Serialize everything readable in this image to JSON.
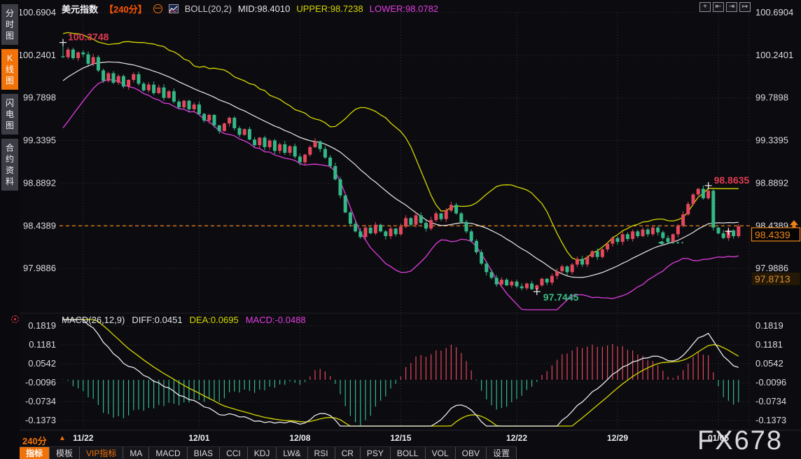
{
  "app": {
    "watermark": "FX678"
  },
  "sidebar": {
    "items": [
      {
        "label": "分时图",
        "active": false
      },
      {
        "label": "K线图",
        "active": true
      },
      {
        "label": "闪电图",
        "active": false
      },
      {
        "label": "合约资料",
        "active": false
      }
    ]
  },
  "header": {
    "symbol": "美元指数",
    "period": "【240分】",
    "indicator": "BOLL(20,2)",
    "mid_label": "MID:98.4010",
    "upper_label": "UPPER:98.7238",
    "lower_label": "LOWER:98.0782"
  },
  "window_controls": [
    {
      "name": "crosshair-icon",
      "glyph": "+"
    },
    {
      "name": "compress-axis-icon",
      "glyph": "⇤"
    },
    {
      "name": "expand-axis-icon",
      "glyph": "⇥"
    },
    {
      "name": "shift-chart-right-icon",
      "glyph": "↦"
    }
  ],
  "macd_header": {
    "title": "MACD(26,12,9)",
    "diff_label": "DIFF:0.0451",
    "dea_label": "DEA:0.0695",
    "macd_label": "MACD:-0.0488"
  },
  "bottom": {
    "period_label": "240分",
    "toolbar": [
      {
        "label": "指标",
        "variant": "active"
      },
      {
        "label": "模板",
        "variant": ""
      },
      {
        "label": "VIP指标",
        "variant": "vip"
      },
      {
        "label": "MA",
        "variant": ""
      },
      {
        "label": "MACD",
        "variant": ""
      },
      {
        "label": "BIAS",
        "variant": ""
      },
      {
        "label": "CCI",
        "variant": ""
      },
      {
        "label": "KDJ",
        "variant": ""
      },
      {
        "label": "LW&",
        "variant": ""
      },
      {
        "label": "RSI",
        "variant": ""
      },
      {
        "label": "CR",
        "variant": ""
      },
      {
        "label": "PSY",
        "variant": ""
      },
      {
        "label": "BOLL",
        "variant": ""
      },
      {
        "label": "VOL",
        "variant": ""
      },
      {
        "label": "OBV",
        "variant": ""
      },
      {
        "label": "设置",
        "variant": ""
      }
    ]
  },
  "chart_data": {
    "type": "candlestick",
    "title": "美元指数 240分 K线 + BOLL(20,2) + MACD(26,12,9)",
    "price_ticks": [
      100.6904,
      100.2401,
      99.7898,
      99.3395,
      98.8892,
      98.4389,
      97.9886
    ],
    "macd_ticks": [
      0.1819,
      0.1181,
      0.0542,
      -0.0096,
      -0.0734,
      -0.1373
    ],
    "x_ticks": [
      {
        "label": "11/22",
        "index": 4
      },
      {
        "label": "12/01",
        "index": 27
      },
      {
        "label": "12/08",
        "index": 47
      },
      {
        "label": "12/15",
        "index": 67
      },
      {
        "label": "12/22",
        "index": 90
      },
      {
        "label": "12/29",
        "index": 110
      },
      {
        "label": "01/05",
        "index": 130
      }
    ],
    "closes": [
      100.22,
      100.3,
      100.21,
      100.27,
      100.25,
      100.15,
      100.22,
      100.08,
      99.97,
      100.05,
      99.95,
      100.02,
      99.91,
      99.98,
      100.04,
      99.94,
      99.87,
      99.93,
      99.84,
      99.9,
      99.79,
      99.86,
      99.75,
      99.69,
      99.76,
      99.67,
      99.72,
      99.62,
      99.55,
      99.61,
      99.5,
      99.44,
      99.52,
      99.58,
      99.47,
      99.4,
      99.46,
      99.35,
      99.29,
      99.37,
      99.27,
      99.34,
      99.23,
      99.3,
      99.21,
      99.28,
      99.17,
      99.11,
      99.19,
      99.27,
      99.33,
      99.25,
      99.16,
      99.07,
      98.93,
      98.76,
      98.58,
      98.46,
      98.38,
      98.32,
      98.42,
      98.36,
      98.45,
      98.38,
      98.33,
      98.41,
      98.35,
      98.43,
      98.52,
      98.45,
      98.55,
      98.47,
      98.41,
      98.5,
      98.57,
      98.51,
      98.6,
      98.66,
      98.57,
      98.48,
      98.38,
      98.28,
      98.16,
      98.04,
      97.95,
      97.89,
      97.82,
      97.87,
      97.81,
      97.85,
      97.8,
      97.78,
      97.83,
      97.77,
      97.81,
      97.88,
      97.84,
      97.91,
      97.96,
      98.01,
      97.95,
      98.03,
      98.09,
      98.03,
      98.11,
      98.17,
      98.11,
      98.19,
      98.25,
      98.31,
      98.27,
      98.35,
      98.3,
      98.38,
      98.33,
      98.4,
      98.35,
      98.42,
      98.37,
      98.31,
      98.27,
      98.35,
      98.44,
      98.56,
      98.67,
      98.77,
      98.83,
      98.73,
      98.81,
      98.42,
      98.36,
      98.31,
      98.39,
      98.33,
      98.4339
    ],
    "extremes": {
      "first_high": {
        "index": 0,
        "value": 100.3748,
        "label": "100.3748"
      },
      "high": {
        "index": 128,
        "value": 98.8635,
        "label": "98.8635"
      },
      "low": {
        "index": 94,
        "value": 97.7445,
        "label": "97.7445"
      },
      "last_cross": {
        "index": 132,
        "value": 98.38
      }
    },
    "last_price": 98.4339,
    "last_price_label": "98.4339",
    "ref_price": 98.4389,
    "low_marker": 97.8713,
    "low_marker_label": "97.8713",
    "measure_line": {
      "from_index": 118,
      "to_index": 123,
      "price": 98.26
    },
    "boll": {
      "period": 20,
      "mult": 2,
      "mid": 98.401,
      "upper": 98.7238,
      "lower": 98.0782
    },
    "macd": {
      "slow": 26,
      "fast": 12,
      "signal": 9,
      "diff": 0.0451,
      "dea": 0.0695,
      "macd": -0.0488
    },
    "legend_position": "top-left",
    "grid": true,
    "colors": {
      "up": "#e5475c",
      "down": "#35b888",
      "boll_upper": "#d6d600",
      "boll_mid": "#eaeaec",
      "boll_lower": "#e03ce0",
      "diff_line": "#eaeaec",
      "dea_line": "#d6d600",
      "hist_pos": "#e5475c",
      "hist_neg": "#35b888",
      "grid": "#2f2f39",
      "axis_text": "#dcdce0",
      "accent_orange": "#f08419",
      "red_label": "#e03a50",
      "green_label": "#3cbd85"
    }
  }
}
